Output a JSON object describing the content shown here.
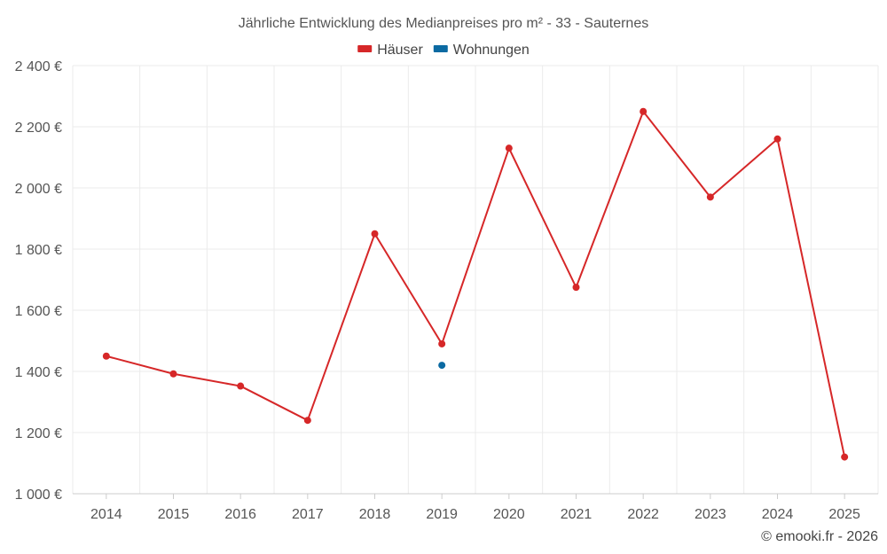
{
  "chart_data": {
    "type": "line",
    "title": "Jährliche Entwicklung des Medianpreises pro m² - 33 - Sauternes",
    "categories": [
      "2014",
      "2015",
      "2016",
      "2017",
      "2018",
      "2019",
      "2020",
      "2021",
      "2022",
      "2023",
      "2024",
      "2025"
    ],
    "series": [
      {
        "name": "Häuser",
        "color": "#d62728",
        "values": [
          1450,
          1392,
          1352,
          1240,
          1850,
          1490,
          2130,
          1675,
          2250,
          1970,
          2160,
          1120
        ]
      },
      {
        "name": "Wohnungen",
        "color": "#0b6aa2",
        "values": [
          null,
          null,
          null,
          null,
          null,
          1420,
          null,
          null,
          null,
          null,
          null,
          null
        ]
      }
    ],
    "ylim": [
      1000,
      2400
    ],
    "yticks": [
      1000,
      1200,
      1400,
      1600,
      1800,
      2000,
      2200,
      2400
    ],
    "ytick_labels": [
      "1 000 €",
      "1 200 €",
      "1 400 €",
      "1 600 €",
      "1 800 €",
      "2 000 €",
      "2 200 €",
      "2 400 €"
    ],
    "xlabel": "",
    "ylabel": "",
    "grid": true,
    "legend_position": "top-center"
  },
  "credit": "© emooki.fr - 2026"
}
